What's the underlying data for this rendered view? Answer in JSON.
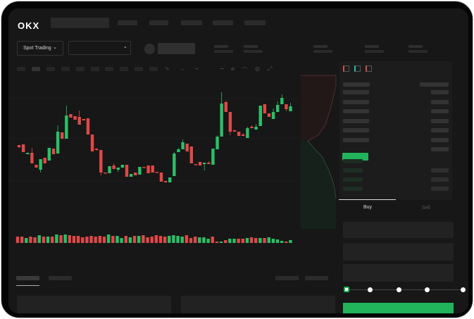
{
  "header": {
    "logo": "OKX",
    "nav_count": 5
  },
  "market": {
    "mode_label": "Spot Trading",
    "pair_selector_value": "",
    "chevron": "chevron-down-icon"
  },
  "toolbar": {
    "icons": [
      "candlestick-type-icon",
      "indicator-icon",
      "timeframe-icon",
      "line-draw-icon",
      "pencil-icon",
      "gauge-icon",
      "settings-icon",
      "fullscreen-icon"
    ]
  },
  "orderbook": {
    "view_icons": [
      "book-both-icon",
      "book-bids-icon",
      "book-asks-icon"
    ]
  },
  "trade": {
    "tabs": [
      {
        "label": "Buy",
        "active": true
      },
      {
        "label": "Sell",
        "active": false
      }
    ],
    "slider_percent": 0,
    "slider_steps": [
      "0%",
      "25%",
      "50%",
      "75%",
      "100%"
    ],
    "submit_color": "#22b45a"
  },
  "colors": {
    "up": "#2bbf68",
    "down": "#e04848",
    "accent": "#22b45a"
  },
  "chart_data": {
    "type": "candlestick",
    "title": "",
    "ohlc": [
      [
        96,
        93,
        96,
        92
      ],
      [
        97,
        86,
        97,
        86
      ],
      [
        83,
        85,
        85,
        83
      ],
      [
        85,
        70,
        92,
        70
      ],
      [
        68,
        64,
        68,
        64
      ],
      [
        61,
        76,
        76,
        57
      ],
      [
        78,
        70,
        78,
        70
      ],
      [
        74,
        92,
        92,
        74
      ],
      [
        91,
        83,
        91,
        83
      ],
      [
        84,
        115,
        124,
        84
      ],
      [
        114,
        105,
        110,
        105
      ],
      [
        105,
        138,
        152,
        105
      ],
      [
        140,
        135,
        140,
        135
      ],
      [
        137,
        132,
        137,
        132
      ],
      [
        136,
        125,
        145,
        125
      ],
      [
        133,
        131,
        133,
        131
      ],
      [
        134,
        111,
        134,
        111
      ],
      [
        111,
        87,
        111,
        87
      ],
      [
        91,
        89,
        91,
        88
      ],
      [
        89,
        57,
        89,
        53
      ],
      [
        57,
        56,
        57,
        56
      ],
      [
        56,
        66,
        66,
        56
      ],
      [
        67,
        62,
        70,
        62
      ],
      [
        61,
        64,
        64,
        58
      ],
      [
        64,
        68,
        68,
        64
      ],
      [
        68,
        51,
        68,
        51
      ],
      [
        51,
        55,
        55,
        51
      ],
      [
        57,
        53,
        57,
        53
      ],
      [
        54,
        65,
        65,
        54
      ],
      [
        65,
        64,
        65,
        64
      ],
      [
        67,
        56,
        67,
        56
      ],
      [
        67,
        57,
        67,
        57
      ],
      [
        58,
        57,
        58,
        57
      ],
      [
        57,
        44,
        57,
        44
      ],
      [
        45,
        43,
        45,
        43
      ],
      [
        43,
        50,
        50,
        43
      ],
      [
        52,
        84,
        86,
        52
      ],
      [
        86,
        90,
        92,
        86
      ],
      [
        90,
        100,
        104,
        90
      ],
      [
        98,
        87,
        98,
        87
      ],
      [
        94,
        70,
        94,
        70
      ],
      [
        69,
        68,
        69,
        68
      ],
      [
        72,
        67,
        72,
        67
      ],
      [
        69,
        71,
        71,
        60
      ],
      [
        71,
        69,
        73,
        69
      ],
      [
        68,
        91,
        91,
        68
      ],
      [
        90,
        108,
        110,
        90
      ],
      [
        108,
        155,
        171,
        108
      ],
      [
        157,
        143,
        159,
        143
      ],
      [
        143,
        115,
        143,
        110
      ],
      [
        117,
        115,
        118,
        115
      ],
      [
        115,
        109,
        115,
        109
      ],
      [
        111,
        109,
        113,
        109
      ],
      [
        106,
        120,
        122,
        106
      ],
      [
        122,
        120,
        124,
        120
      ],
      [
        118,
        122,
        126,
        118
      ],
      [
        123,
        152,
        152,
        123
      ],
      [
        154,
        141,
        154,
        141
      ],
      [
        141,
        136,
        141,
        136
      ],
      [
        133,
        143,
        148,
        133
      ],
      [
        143,
        153,
        158,
        143
      ],
      [
        154,
        163,
        168,
        154
      ],
      [
        154,
        147,
        154,
        144
      ],
      [
        144,
        151,
        156,
        144
      ]
    ],
    "volume": [
      [
        9,
        "d"
      ],
      [
        9,
        "d"
      ],
      [
        7,
        "u"
      ],
      [
        9,
        "d"
      ],
      [
        8,
        "d"
      ],
      [
        11,
        "u"
      ],
      [
        9,
        "d"
      ],
      [
        9,
        "u"
      ],
      [
        9,
        "d"
      ],
      [
        12,
        "u"
      ],
      [
        11,
        "d"
      ],
      [
        12,
        "u"
      ],
      [
        11,
        "d"
      ],
      [
        10,
        "d"
      ],
      [
        10,
        "d"
      ],
      [
        8,
        "d"
      ],
      [
        9,
        "d"
      ],
      [
        10,
        "d"
      ],
      [
        9,
        "d"
      ],
      [
        10,
        "d"
      ],
      [
        9,
        "d"
      ],
      [
        12,
        "u"
      ],
      [
        10,
        "d"
      ],
      [
        10,
        "u"
      ],
      [
        7,
        "u"
      ],
      [
        10,
        "d"
      ],
      [
        8,
        "u"
      ],
      [
        10,
        "d"
      ],
      [
        10,
        "u"
      ],
      [
        11,
        "d"
      ],
      [
        8,
        "d"
      ],
      [
        9,
        "d"
      ],
      [
        11,
        "d"
      ],
      [
        10,
        "d"
      ],
      [
        9,
        "d"
      ],
      [
        10,
        "u"
      ],
      [
        11,
        "u"
      ],
      [
        10,
        "u"
      ],
      [
        9,
        "u"
      ],
      [
        11,
        "d"
      ],
      [
        7,
        "d"
      ],
      [
        9,
        "d"
      ],
      [
        8,
        "u"
      ],
      [
        8,
        "u"
      ],
      [
        6,
        "u"
      ],
      [
        9,
        "d"
      ],
      [
        2,
        "d"
      ],
      [
        2,
        "u"
      ],
      [
        4,
        "d"
      ],
      [
        6,
        "u"
      ],
      [
        6,
        "u"
      ],
      [
        6,
        "d"
      ],
      [
        6,
        "d"
      ],
      [
        7,
        "u"
      ],
      [
        8,
        "d"
      ],
      [
        7,
        "d"
      ],
      [
        7,
        "u"
      ],
      [
        7,
        "d"
      ],
      [
        8,
        "u"
      ],
      [
        6,
        "u"
      ],
      [
        5,
        "u"
      ],
      [
        3,
        "u"
      ],
      [
        2,
        "d"
      ],
      [
        4,
        "u"
      ]
    ],
    "grid": true
  }
}
